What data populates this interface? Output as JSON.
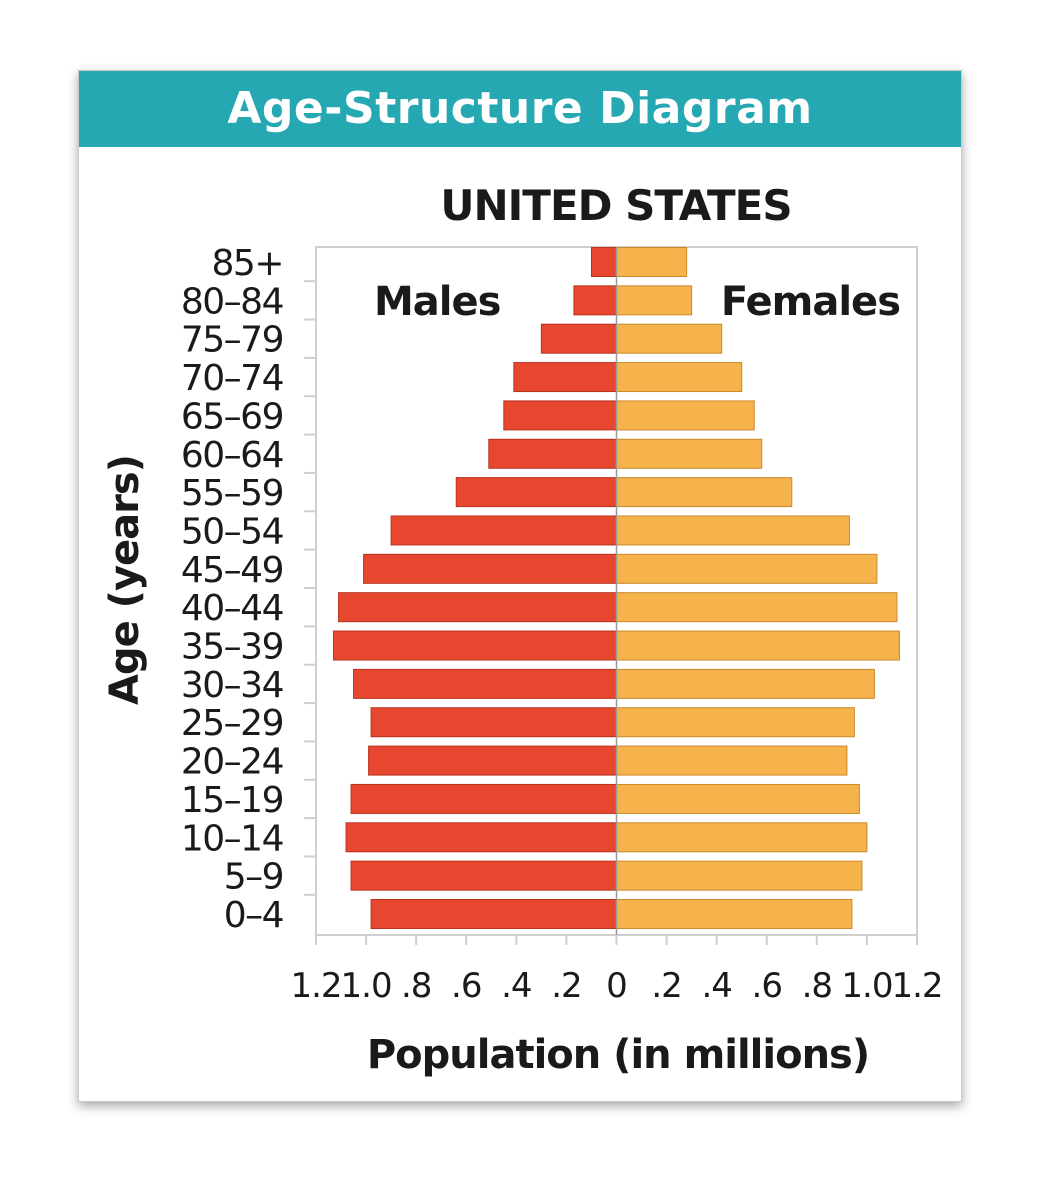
{
  "card": {
    "title": "Age-Structure Diagram",
    "header_color": "#26a8b2"
  },
  "chart_data": {
    "type": "bar",
    "orientation": "horizontal-population-pyramid",
    "title": "UNITED STATES",
    "xlabel": "Population (in millions)",
    "ylabel": "Age (years)",
    "xlim": [
      -1.2,
      1.2
    ],
    "x_tick_labels": [
      "1.2",
      "1.0",
      ".8",
      ".6",
      ".4",
      ".2",
      "0",
      ".2",
      ".4",
      ".6",
      ".8",
      "1.0",
      "1.2"
    ],
    "categories": [
      "85+",
      "80–84",
      "75–79",
      "70–74",
      "65–69",
      "60–64",
      "55–59",
      "50–54",
      "45–49",
      "40–44",
      "35–39",
      "30–34",
      "25–29",
      "20–24",
      "15–19",
      "10–14",
      "5–9",
      "0–4"
    ],
    "series": [
      {
        "name": "Males",
        "side": "left",
        "color": "#e8472f",
        "values": [
          0.1,
          0.17,
          0.3,
          0.41,
          0.45,
          0.51,
          0.64,
          0.9,
          1.01,
          1.11,
          1.13,
          1.05,
          0.98,
          0.99,
          1.06,
          1.08,
          1.06,
          0.98
        ]
      },
      {
        "name": "Females",
        "side": "right",
        "color": "#f6b24b",
        "values": [
          0.28,
          0.3,
          0.42,
          0.5,
          0.55,
          0.58,
          0.7,
          0.93,
          1.04,
          1.12,
          1.13,
          1.03,
          0.95,
          0.92,
          0.97,
          1.0,
          0.98,
          0.94
        ]
      }
    ],
    "grid": false,
    "legend": "inline-labels-top"
  }
}
